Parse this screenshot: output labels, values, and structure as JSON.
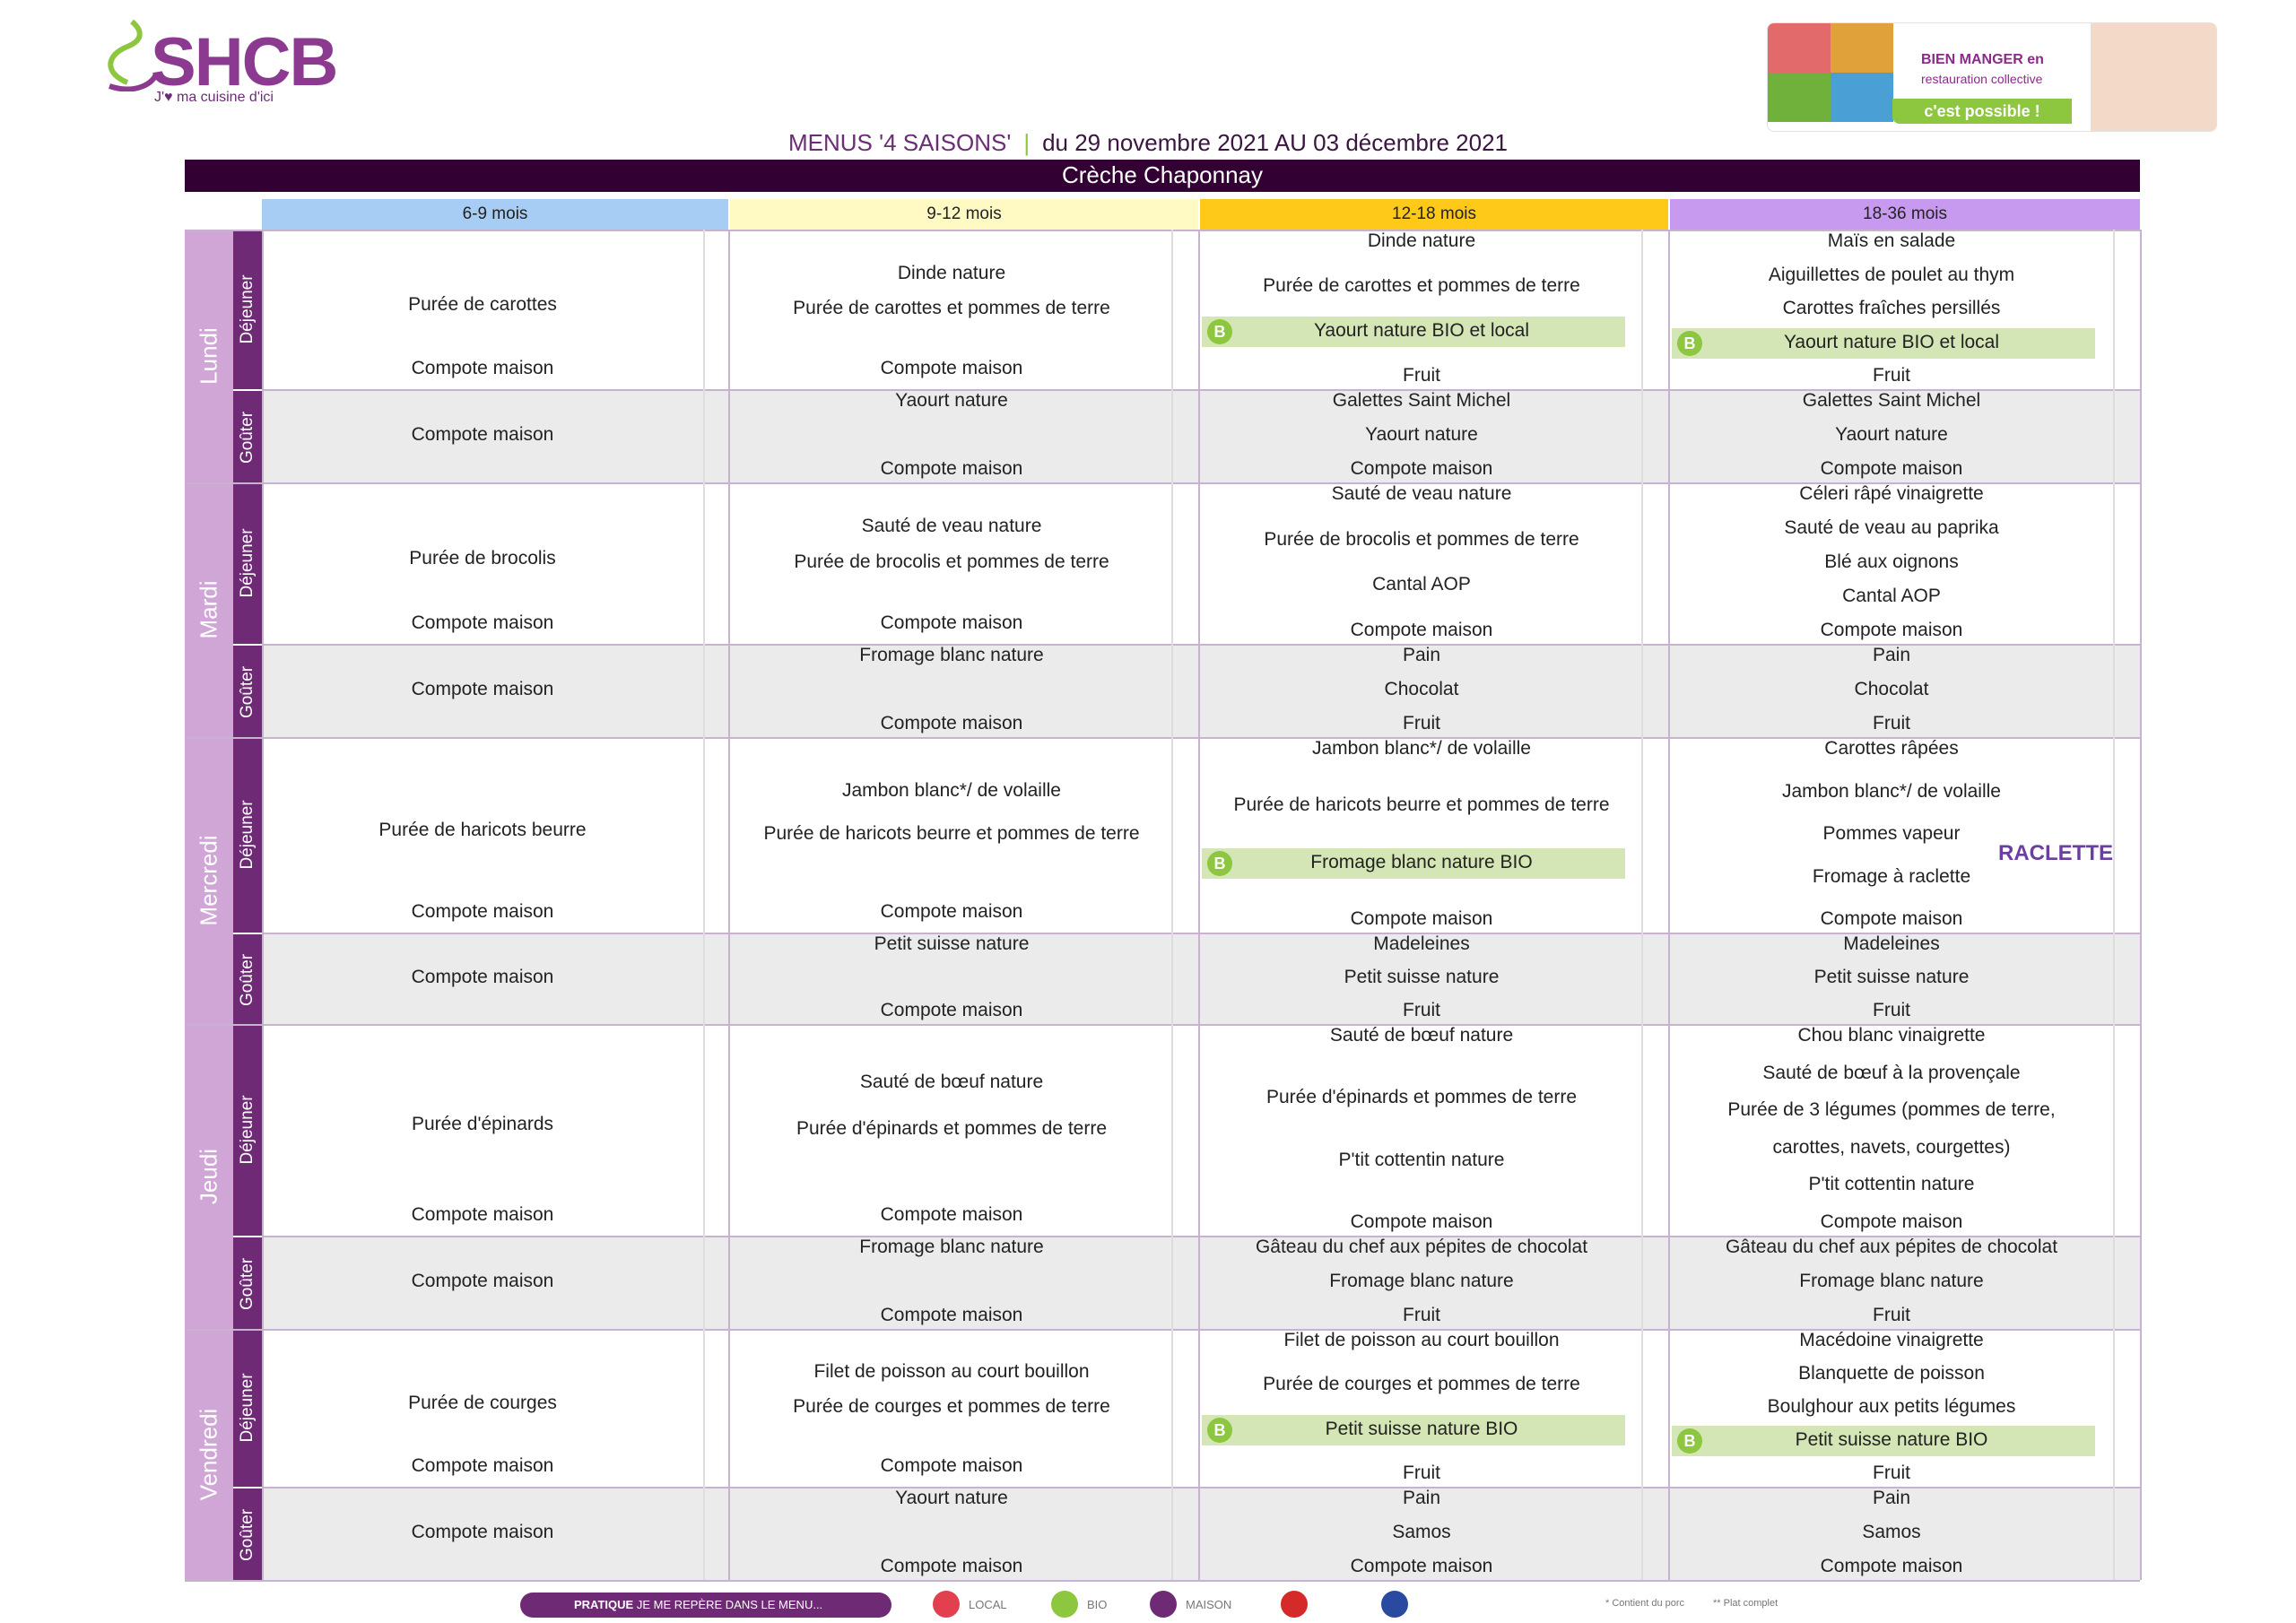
{
  "header": {
    "logo_text": "SHCB",
    "logo_tagline": "J'♥ ma cuisine d'ici",
    "banner_line1": "BIEN MANGER en",
    "banner_line2": "restauration collective",
    "banner_cta": "c'est possible !",
    "menus_label": "MENUS '4 SAISONS'",
    "separator": "|",
    "dates": "du 29 novembre 2021 AU 03 décembre 2021",
    "site": "Crèche Chaponnay"
  },
  "ages": [
    "6-9 mois",
    "9-12 mois",
    "12-18 mois",
    "18-36 mois"
  ],
  "age_colors": [
    "#a8cdf5",
    "#fff9c4",
    "#ffc919",
    "#c79af0"
  ],
  "meal_labels": {
    "dejeuner": "Déjeuner",
    "gouter": "Goûter"
  },
  "days": [
    {
      "name": "Lundi",
      "dejeuner": [
        [
          "Purée de carottes",
          "Compote maison"
        ],
        [
          "Dinde nature",
          "Purée de carottes et pommes de terre",
          "Compote maison"
        ],
        [
          "Dinde nature",
          "Purée de carottes et pommes de terre",
          "Yaourt nature BIO et local",
          "Fruit"
        ],
        [
          "Maïs en salade",
          "Aiguillettes de poulet au thym",
          "Carottes fraîches persillés",
          "Yaourt nature BIO et local",
          "Fruit"
        ]
      ],
      "gouter": [
        [
          "Compote maison"
        ],
        [
          "Yaourt nature",
          "Compote maison"
        ],
        [
          "Galettes Saint Michel",
          "Yaourt nature",
          "Compote maison"
        ],
        [
          "Galettes Saint Michel",
          "Yaourt nature",
          "Compote maison"
        ]
      ]
    },
    {
      "name": "Mardi",
      "dejeuner": [
        [
          "Purée de brocolis",
          "Compote maison"
        ],
        [
          "Sauté de veau nature",
          "Purée de brocolis et pommes de terre",
          "Compote maison"
        ],
        [
          "Sauté de veau nature",
          "Purée de brocolis et pommes de terre",
          "Cantal AOP",
          "Compote maison"
        ],
        [
          "Céleri râpé vinaigrette",
          "Sauté de veau au paprika",
          "Blé aux oignons",
          "Cantal AOP",
          "Compote maison"
        ]
      ],
      "gouter": [
        [
          "Compote maison"
        ],
        [
          "Fromage blanc nature",
          "Compote maison"
        ],
        [
          "Pain",
          "Chocolat",
          "Fruit"
        ],
        [
          "Pain",
          "Chocolat",
          "Fruit"
        ]
      ]
    },
    {
      "name": "Mercredi",
      "dejeuner": [
        [
          "Purée de haricots beurre",
          "Compote maison"
        ],
        [
          "Jambon blanc*/ de volaille",
          "Purée de haricots beurre et pommes de terre",
          "Compote maison"
        ],
        [
          "Jambon blanc*/ de volaille",
          "Purée de haricots beurre et pommes de terre",
          "Fromage blanc nature BIO",
          "Compote maison"
        ],
        [
          "Carottes râpées",
          "Jambon blanc*/ de volaille",
          "Pommes vapeur",
          "Fromage à raclette",
          "Compote maison"
        ]
      ],
      "gouter": [
        [
          "Compote maison"
        ],
        [
          "Petit suisse nature",
          "Compote maison"
        ],
        [
          "Madeleines",
          "Petit suisse nature",
          "Fruit"
        ],
        [
          "Madeleines",
          "Petit suisse nature",
          "Fruit"
        ]
      ]
    },
    {
      "name": "Jeudi",
      "dejeuner": [
        [
          "Purée d'épinards",
          "Compote maison"
        ],
        [
          "Sauté de bœuf nature",
          "Purée d'épinards et pommes de terre",
          "Compote maison"
        ],
        [
          "Sauté de bœuf nature",
          "Purée d'épinards et pommes de terre",
          "P'tit cottentin nature",
          "Compote maison"
        ],
        [
          "Chou blanc vinaigrette",
          "Sauté de bœuf à la provençale",
          "Purée de 3 légumes (pommes de terre,",
          "carottes, navets, courgettes)",
          "P'tit cottentin nature",
          "Compote maison"
        ]
      ],
      "gouter": [
        [
          "Compote maison"
        ],
        [
          "Fromage blanc nature",
          "Compote maison"
        ],
        [
          "Gâteau du chef aux pépites de chocolat",
          "Fromage blanc nature",
          "Fruit"
        ],
        [
          "Gâteau du chef aux pépites de chocolat",
          "Fromage blanc nature",
          "Fruit"
        ]
      ]
    },
    {
      "name": "Vendredi",
      "dejeuner": [
        [
          "Purée de courges",
          "Compote maison"
        ],
        [
          "Filet de poisson au court bouillon",
          "Purée de courges et pommes de terre",
          "Compote maison"
        ],
        [
          "Filet de poisson au court bouillon",
          "Purée de courges et pommes de terre",
          "Petit suisse nature BIO",
          "Fruit"
        ],
        [
          "Macédoine vinaigrette",
          "Blanquette de poisson",
          "Boulghour aux petits légumes",
          "Petit suisse nature BIO",
          "Fruit"
        ]
      ],
      "gouter": [
        [
          "Compote maison"
        ],
        [
          "Yaourt nature",
          "Compote maison"
        ],
        [
          "Pain",
          "Samos",
          "Compote maison"
        ],
        [
          "Pain",
          "Samos",
          "Compote maison"
        ]
      ]
    }
  ],
  "bio_badge": "B",
  "raclette": "RACLETTE",
  "legend": {
    "pill_bold": "PRATIQUE",
    "pill_text": "JE ME REPÈRE DANS LE MENU...",
    "local": "LOCAL",
    "bio": "BIO",
    "maison": "MAISON",
    "porc": "* Contient du porc",
    "plat": "** Plat complet"
  },
  "colors": {
    "purple_dark": "#330033",
    "purple": "#6e2a74",
    "day_purple": "#cfa6d6",
    "green": "#8dc63f",
    "bio_highlight": "#d4e6b5"
  }
}
